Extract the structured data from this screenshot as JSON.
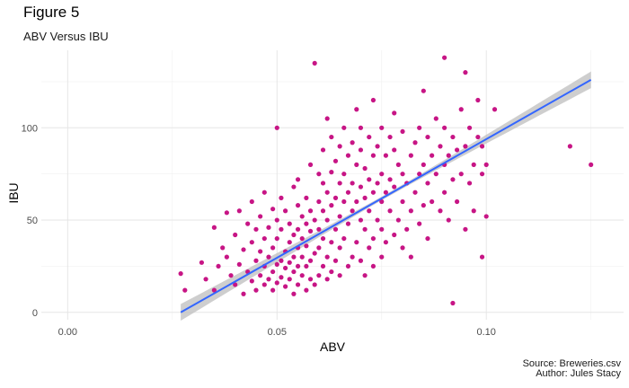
{
  "figure": {
    "title": "Figure 5",
    "subtitle": "ABV Versus IBU",
    "caption_line1": "Source: Breweries.csv",
    "caption_line2": "Author: Jules Stacy"
  },
  "chart_data": {
    "type": "scatter",
    "title": "Figure 5",
    "subtitle": "ABV Versus IBU",
    "xlabel": "ABV",
    "ylabel": "IBU",
    "xlim": [
      -0.0063,
      0.1328
    ],
    "ylim": [
      -4,
      142
    ],
    "x_ticks": [
      0.0,
      0.05,
      0.1
    ],
    "x_tick_labels": [
      "0.00",
      "0.05",
      "0.10"
    ],
    "y_ticks": [
      0,
      50,
      100
    ],
    "y_tick_labels": [
      "0",
      "50",
      "100"
    ],
    "grid": true,
    "point_color": "#c71585",
    "line_color": "#3366ff",
    "band_color": "#bdbdbd",
    "trend": {
      "type": "linear",
      "start": {
        "x": 0.027,
        "y": 0
      },
      "end": {
        "x": 0.125,
        "y": 126
      },
      "band_halfwidth_at_ends": 4.5,
      "band_halfwidth_at_center": 1.0
    },
    "points": [
      [
        0.027,
        21
      ],
      [
        0.028,
        12
      ],
      [
        0.032,
        27
      ],
      [
        0.033,
        18
      ],
      [
        0.035,
        46
      ],
      [
        0.035,
        12
      ],
      [
        0.036,
        25
      ],
      [
        0.037,
        35
      ],
      [
        0.038,
        30
      ],
      [
        0.038,
        54
      ],
      [
        0.039,
        20
      ],
      [
        0.04,
        15
      ],
      [
        0.04,
        42
      ],
      [
        0.041,
        26
      ],
      [
        0.041,
        55
      ],
      [
        0.042,
        10
      ],
      [
        0.042,
        34
      ],
      [
        0.043,
        22
      ],
      [
        0.043,
        48
      ],
      [
        0.044,
        17
      ],
      [
        0.044,
        38
      ],
      [
        0.044,
        60
      ],
      [
        0.045,
        12
      ],
      [
        0.045,
        28
      ],
      [
        0.045,
        45
      ],
      [
        0.046,
        20
      ],
      [
        0.046,
        33
      ],
      [
        0.046,
        52
      ],
      [
        0.047,
        15
      ],
      [
        0.047,
        25
      ],
      [
        0.047,
        40
      ],
      [
        0.047,
        65
      ],
      [
        0.048,
        18
      ],
      [
        0.048,
        30
      ],
      [
        0.048,
        46
      ],
      [
        0.049,
        12
      ],
      [
        0.049,
        22
      ],
      [
        0.049,
        35
      ],
      [
        0.049,
        56
      ],
      [
        0.05,
        16
      ],
      [
        0.05,
        26
      ],
      [
        0.05,
        40
      ],
      [
        0.05,
        50
      ],
      [
        0.05,
        100
      ],
      [
        0.051,
        19
      ],
      [
        0.051,
        28
      ],
      [
        0.051,
        45
      ],
      [
        0.051,
        62
      ],
      [
        0.052,
        14
      ],
      [
        0.052,
        24
      ],
      [
        0.052,
        33
      ],
      [
        0.052,
        55
      ],
      [
        0.053,
        18
      ],
      [
        0.053,
        27
      ],
      [
        0.053,
        38
      ],
      [
        0.053,
        48
      ],
      [
        0.054,
        10
      ],
      [
        0.054,
        22
      ],
      [
        0.054,
        30
      ],
      [
        0.054,
        42
      ],
      [
        0.054,
        68
      ],
      [
        0.055,
        15
      ],
      [
        0.055,
        25
      ],
      [
        0.055,
        35
      ],
      [
        0.055,
        45
      ],
      [
        0.055,
        58
      ],
      [
        0.055,
        72
      ],
      [
        0.056,
        20
      ],
      [
        0.056,
        30
      ],
      [
        0.056,
        40
      ],
      [
        0.056,
        52
      ],
      [
        0.057,
        12
      ],
      [
        0.057,
        25
      ],
      [
        0.057,
        36
      ],
      [
        0.057,
        48
      ],
      [
        0.057,
        62
      ],
      [
        0.058,
        18
      ],
      [
        0.058,
        28
      ],
      [
        0.058,
        44
      ],
      [
        0.058,
        55
      ],
      [
        0.058,
        80
      ],
      [
        0.059,
        15
      ],
      [
        0.059,
        32
      ],
      [
        0.059,
        50
      ],
      [
        0.059,
        135
      ],
      [
        0.06,
        20
      ],
      [
        0.06,
        35
      ],
      [
        0.06,
        45
      ],
      [
        0.06,
        60
      ],
      [
        0.06,
        75
      ],
      [
        0.061,
        25
      ],
      [
        0.061,
        40
      ],
      [
        0.061,
        55
      ],
      [
        0.061,
        70
      ],
      [
        0.061,
        88
      ],
      [
        0.062,
        18
      ],
      [
        0.062,
        30
      ],
      [
        0.062,
        50
      ],
      [
        0.062,
        65
      ],
      [
        0.062,
        105
      ],
      [
        0.063,
        22
      ],
      [
        0.063,
        38
      ],
      [
        0.063,
        58
      ],
      [
        0.063,
        76
      ],
      [
        0.063,
        95
      ],
      [
        0.064,
        28
      ],
      [
        0.064,
        45
      ],
      [
        0.064,
        62
      ],
      [
        0.064,
        82
      ],
      [
        0.065,
        20
      ],
      [
        0.065,
        35
      ],
      [
        0.065,
        52
      ],
      [
        0.065,
        70
      ],
      [
        0.065,
        90
      ],
      [
        0.066,
        40
      ],
      [
        0.066,
        60
      ],
      [
        0.066,
        75
      ],
      [
        0.066,
        100
      ],
      [
        0.067,
        25
      ],
      [
        0.067,
        48
      ],
      [
        0.067,
        65
      ],
      [
        0.067,
        85
      ],
      [
        0.068,
        30
      ],
      [
        0.068,
        55
      ],
      [
        0.068,
        70
      ],
      [
        0.068,
        92
      ],
      [
        0.069,
        38
      ],
      [
        0.069,
        60
      ],
      [
        0.069,
        80
      ],
      [
        0.069,
        110
      ],
      [
        0.07,
        28
      ],
      [
        0.07,
        50
      ],
      [
        0.07,
        68
      ],
      [
        0.07,
        88
      ],
      [
        0.07,
        100
      ],
      [
        0.071,
        20
      ],
      [
        0.071,
        45
      ],
      [
        0.071,
        62
      ],
      [
        0.071,
        78
      ],
      [
        0.072,
        35
      ],
      [
        0.072,
        55
      ],
      [
        0.072,
        72
      ],
      [
        0.072,
        95
      ],
      [
        0.073,
        25
      ],
      [
        0.073,
        40
      ],
      [
        0.073,
        65
      ],
      [
        0.073,
        85
      ],
      [
        0.073,
        115
      ],
      [
        0.074,
        50
      ],
      [
        0.074,
        70
      ],
      [
        0.074,
        90
      ],
      [
        0.075,
        30
      ],
      [
        0.075,
        45
      ],
      [
        0.075,
        60
      ],
      [
        0.075,
        75
      ],
      [
        0.075,
        100
      ],
      [
        0.076,
        38
      ],
      [
        0.076,
        65
      ],
      [
        0.076,
        85
      ],
      [
        0.077,
        55
      ],
      [
        0.077,
        72
      ],
      [
        0.077,
        95
      ],
      [
        0.078,
        42
      ],
      [
        0.078,
        68
      ],
      [
        0.078,
        88
      ],
      [
        0.078,
        108
      ],
      [
        0.079,
        50
      ],
      [
        0.079,
        80
      ],
      [
        0.08,
        35
      ],
      [
        0.08,
        60
      ],
      [
        0.08,
        75
      ],
      [
        0.08,
        98
      ],
      [
        0.081,
        45
      ],
      [
        0.081,
        70
      ],
      [
        0.082,
        30
      ],
      [
        0.082,
        55
      ],
      [
        0.082,
        85
      ],
      [
        0.083,
        65
      ],
      [
        0.083,
        92
      ],
      [
        0.084,
        48
      ],
      [
        0.084,
        75
      ],
      [
        0.084,
        100
      ],
      [
        0.085,
        58
      ],
      [
        0.085,
        80
      ],
      [
        0.085,
        120
      ],
      [
        0.086,
        40
      ],
      [
        0.086,
        70
      ],
      [
        0.086,
        95
      ],
      [
        0.087,
        60
      ],
      [
        0.087,
        85
      ],
      [
        0.088,
        75
      ],
      [
        0.088,
        105
      ],
      [
        0.089,
        55
      ],
      [
        0.089,
        90
      ],
      [
        0.09,
        65
      ],
      [
        0.09,
        80
      ],
      [
        0.09,
        100
      ],
      [
        0.09,
        138
      ],
      [
        0.091,
        50
      ],
      [
        0.091,
        85
      ],
      [
        0.092,
        5
      ],
      [
        0.092,
        72
      ],
      [
        0.092,
        95
      ],
      [
        0.093,
        60
      ],
      [
        0.093,
        88
      ],
      [
        0.094,
        75
      ],
      [
        0.094,
        110
      ],
      [
        0.095,
        45
      ],
      [
        0.095,
        90
      ],
      [
        0.095,
        130
      ],
      [
        0.096,
        70
      ],
      [
        0.096,
        100
      ],
      [
        0.097,
        55
      ],
      [
        0.097,
        80
      ],
      [
        0.098,
        95
      ],
      [
        0.098,
        115
      ],
      [
        0.099,
        30
      ],
      [
        0.099,
        75
      ],
      [
        0.099,
        90
      ],
      [
        0.1,
        52
      ],
      [
        0.1,
        80
      ],
      [
        0.102,
        110
      ],
      [
        0.12,
        90
      ],
      [
        0.125,
        80
      ]
    ]
  }
}
